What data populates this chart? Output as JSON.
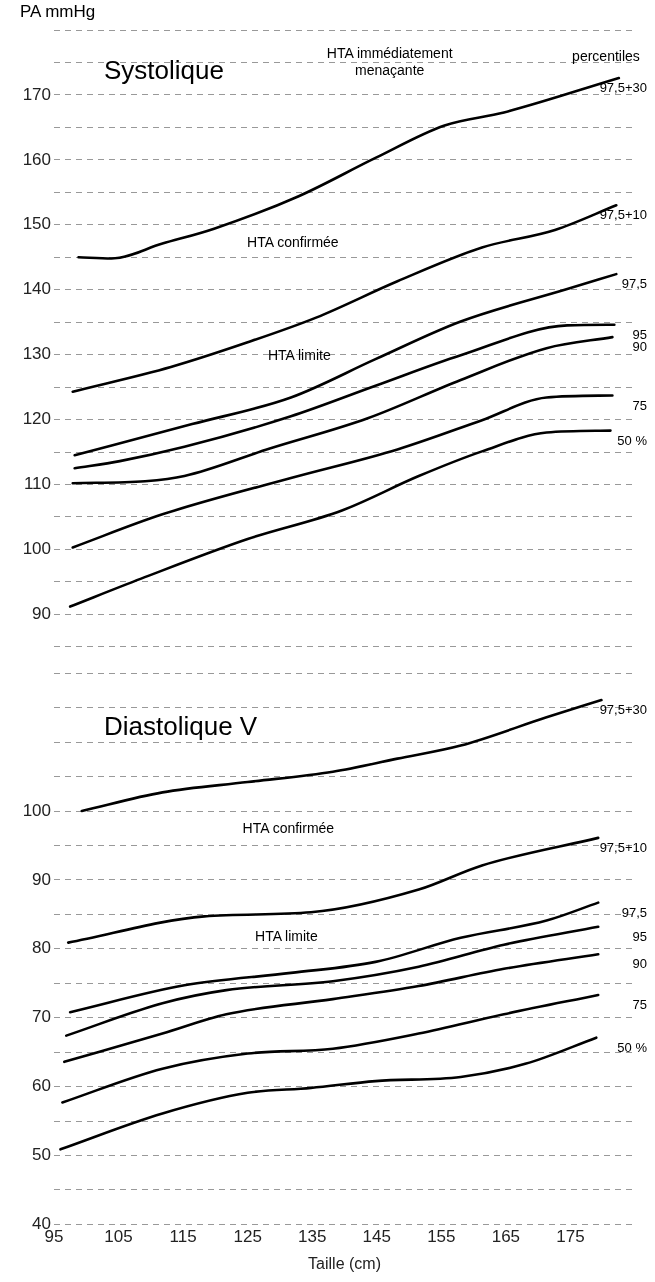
{
  "chart_data": [
    {
      "type": "line",
      "title": "Systolique",
      "ylabel": "PA mmHg",
      "xlim": [
        95,
        185
      ],
      "xticks": [
        95,
        105,
        115,
        125,
        135,
        145,
        155,
        165,
        175
      ],
      "ylim": [
        85,
        180
      ],
      "yticks": [
        {
          "value": 85,
          "label": null
        },
        90,
        {
          "value": 95,
          "label": null
        },
        100,
        {
          "value": 105,
          "label": null
        },
        110,
        {
          "value": 115,
          "label": null
        },
        120,
        {
          "value": 125,
          "label": null
        },
        130,
        {
          "value": 135,
          "label": null
        },
        140,
        {
          "value": 145,
          "label": null
        },
        150,
        {
          "value": 155,
          "label": null
        },
        160,
        {
          "value": 165,
          "label": null
        },
        170,
        {
          "value": 175,
          "label": null
        },
        {
          "value": 180,
          "label": null
        }
      ],
      "grid": "y",
      "tick_labels": "y",
      "annotations": [
        "HTA immédiatement\nmenaçante",
        "percentiles",
        "HTA confirmée",
        "HTA limite"
      ],
      "series": [
        {
          "name": "97,5+30",
          "color": "#000000",
          "x": [
            98.8,
            103.9,
            111.8,
            119.8,
            132.9,
            144.8,
            155.5,
            164.7,
            182.5
          ],
          "values": [
            145.0,
            144.8,
            147.1,
            149.4,
            154.4,
            160.3,
            165.3,
            167.3,
            172.6
          ]
        },
        {
          "name": "97,5+10",
          "color": "#000000",
          "x": [
            97.9,
            113.1,
            125.0,
            135.6,
            148.2,
            161.3,
            172.6,
            182.1
          ],
          "values": [
            124.3,
            128.1,
            131.9,
            135.7,
            141.3,
            146.5,
            149.2,
            153.0
          ]
        },
        {
          "name": "97,5",
          "color": "#000000",
          "x": [
            98.2,
            116.4,
            131.7,
            144.8,
            158.0,
            174.5,
            182.1
          ],
          "values": [
            114.5,
            119.3,
            123.4,
            129.3,
            135.1,
            140.1,
            142.4
          ]
        },
        {
          "name": "95",
          "color": "#000000",
          "x": [
            98.2,
            105.2,
            115.2,
            131.7,
            144.8,
            158.0,
            174.5,
            181.8
          ],
          "values": [
            112.5,
            113.6,
            115.8,
            120.5,
            125.2,
            129.9,
            134.5,
            134.6
          ]
        },
        {
          "name": "90",
          "color": "#000000",
          "x": [
            97.9,
            109.1,
            115.2,
            128.3,
            143.6,
            158.0,
            171.3,
            181.5
          ],
          "values": [
            110.2,
            110.5,
            111.3,
            115.5,
            120.2,
            126.1,
            131.0,
            132.7
          ]
        },
        {
          "name": "75",
          "color": "#000000",
          "x": [
            97.9,
            111.8,
            131.7,
            148.2,
            161.3,
            171.3,
            181.5
          ],
          "values": [
            100.3,
            105.4,
            111.0,
            115.4,
            119.9,
            123.4,
            123.7
          ]
        },
        {
          "name": "50 %",
          "color": "#000000",
          "x": [
            97.5,
            108.5,
            125.0,
            139.6,
            151.5,
            161.3,
            171.3,
            181.2
          ],
          "values": [
            91.2,
            95.5,
            101.6,
            106.0,
            111.3,
            115.1,
            118.0,
            118.3
          ]
        }
      ]
    },
    {
      "type": "line",
      "title": "Diastolique V",
      "xlabel": "Taille (cm)",
      "xlim": [
        95,
        185
      ],
      "xticks": [
        95,
        105,
        115,
        125,
        135,
        145,
        155,
        165,
        175
      ],
      "ylim": [
        40,
        120
      ],
      "yticks": [
        40,
        {
          "value": 45,
          "label": null
        },
        50,
        {
          "value": 55,
          "label": null
        },
        60,
        {
          "value": 65,
          "label": null
        },
        70,
        {
          "value": 75,
          "label": null
        },
        80,
        {
          "value": 85,
          "label": null
        },
        90,
        {
          "value": 95,
          "label": null
        },
        100,
        {
          "value": 105,
          "label": null
        },
        {
          "value": 110,
          "label": null
        },
        {
          "value": 115,
          "label": null
        },
        {
          "value": 120,
          "label": null
        }
      ],
      "grid": "y",
      "annotations": [
        "HTA confirmée",
        "HTA limite"
      ],
      "series": [
        {
          "name": "97,5+30",
          "color": "#000000",
          "x": [
            99.3,
            111.8,
            125.0,
            138.2,
            148.2,
            158.0,
            171.3,
            179.8
          ],
          "values": [
            100.0,
            102.7,
            104.2,
            105.7,
            107.6,
            109.5,
            113.6,
            116.1
          ]
        },
        {
          "name": "97,5+10",
          "color": "#000000",
          "x": [
            97.2,
            118.3,
            134.8,
            151.5,
            161.3,
            179.3
          ],
          "values": [
            80.9,
            84.7,
            85.3,
            88.6,
            92.1,
            96.1
          ]
        },
        {
          "name": "97,5",
          "color": "#000000",
          "x": [
            97.5,
            115.2,
            131.7,
            144.8,
            158.0,
            171.3,
            179.3
          ],
          "values": [
            70.8,
            74.7,
            76.5,
            78.1,
            81.6,
            84.1,
            86.7
          ]
        },
        {
          "name": "95",
          "color": "#000000",
          "x": [
            96.9,
            111.8,
            121.7,
            138.2,
            151.5,
            164.7,
            179.3
          ],
          "values": [
            67.4,
            72.1,
            74.0,
            75.3,
            77.4,
            80.6,
            83.2
          ]
        },
        {
          "name": "90",
          "color": "#000000",
          "x": [
            96.6,
            111.8,
            121.7,
            138.2,
            151.5,
            164.7,
            179.3
          ],
          "values": [
            63.6,
            67.7,
            70.5,
            72.7,
            74.6,
            77.1,
            79.2
          ]
        },
        {
          "name": "75",
          "color": "#000000",
          "x": [
            96.3,
            111.8,
            125.0,
            138.2,
            151.5,
            164.7,
            179.3
          ],
          "values": [
            57.7,
            62.6,
            64.8,
            65.5,
            67.7,
            70.5,
            73.3
          ]
        },
        {
          "name": "50 %",
          "color": "#000000",
          "x": [
            96.0,
            111.8,
            125.0,
            134.8,
            144.8,
            158.0,
            168.0,
            179.0
          ],
          "values": [
            50.9,
            56.1,
            59.1,
            59.8,
            60.8,
            61.4,
            63.3,
            67.1
          ]
        }
      ]
    }
  ]
}
